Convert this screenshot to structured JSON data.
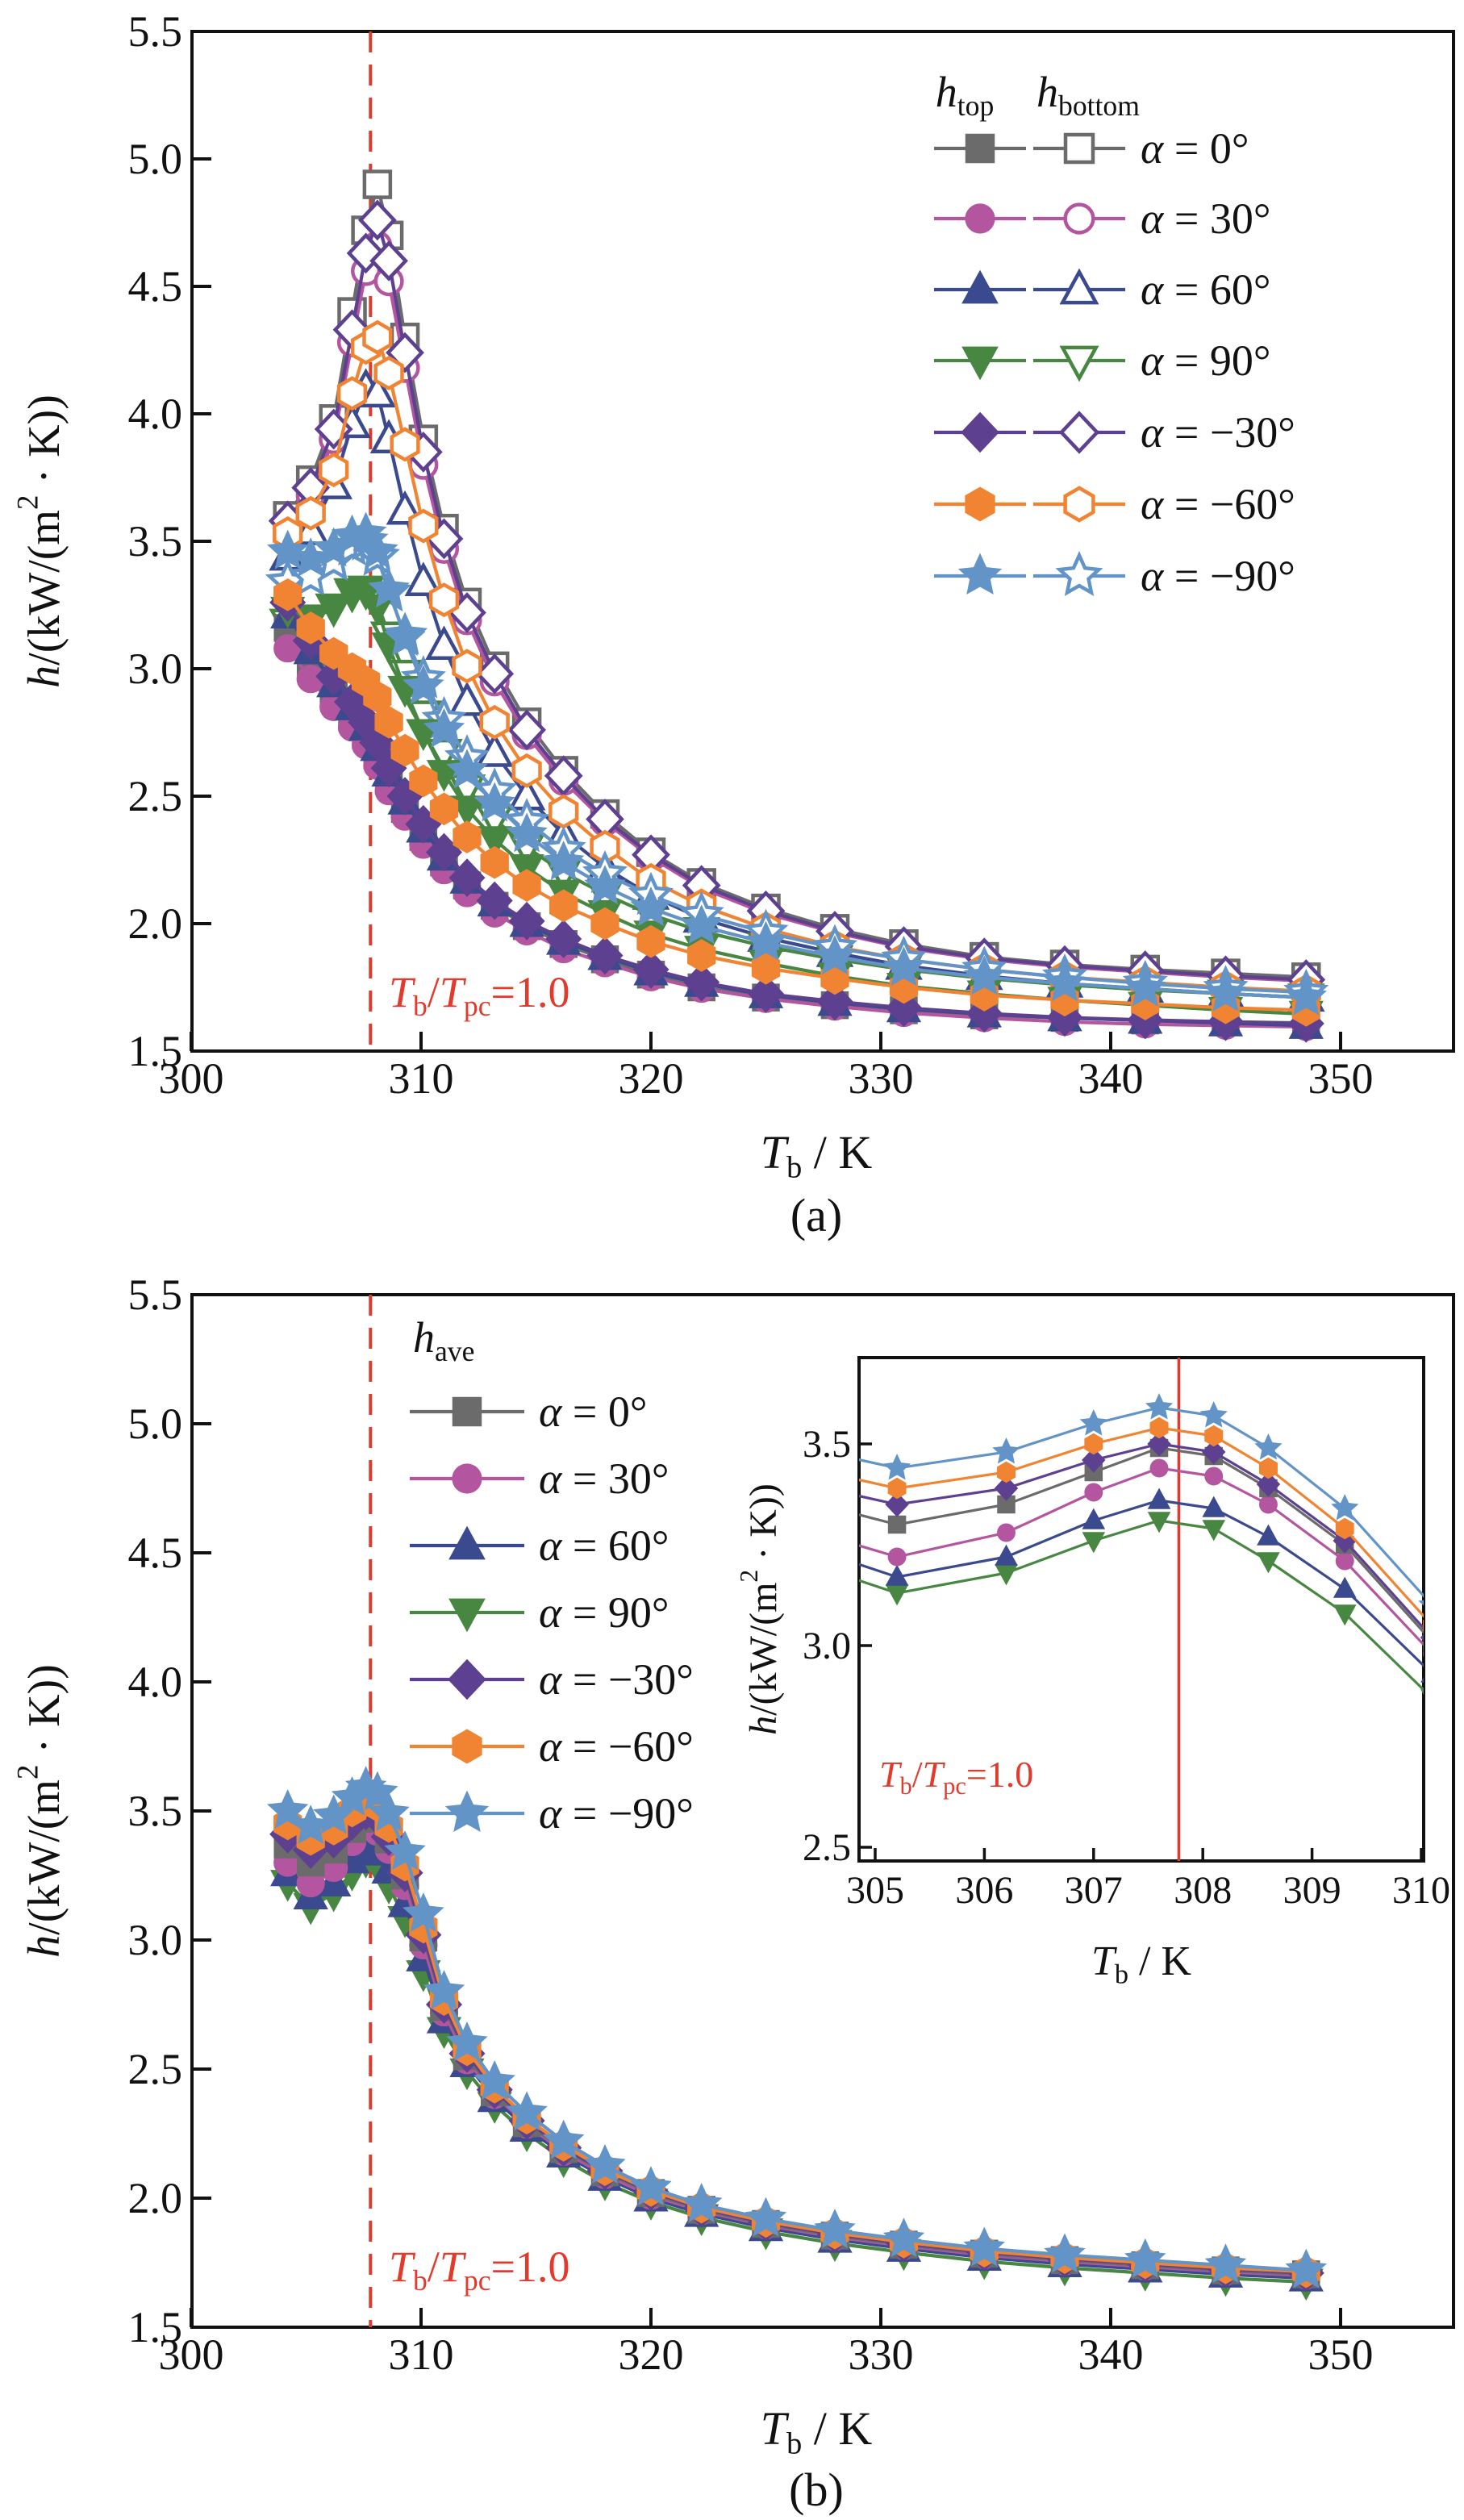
{
  "figure": {
    "background": "#ffffff",
    "text_color": "#111111",
    "accent_red": "#e23a2c",
    "caption_a": "(a)",
    "caption_b": "(b)"
  },
  "chart_data": [
    {
      "id": "panel_a",
      "type": "line",
      "caption": "(a)",
      "xlabel": "*T*~b~ / K",
      "ylabel": "*h*/(kW/(m^2^ · K))",
      "xlim": [
        300,
        354.9
      ],
      "ylim": [
        1.5,
        5.5
      ],
      "xticks": [
        300,
        310,
        320,
        330,
        340,
        350
      ],
      "yticks": [
        1.5,
        2.0,
        2.5,
        3.0,
        3.5,
        4.0,
        4.5,
        5.0,
        5.5
      ],
      "grid": false,
      "legend": {
        "position": "top-right",
        "columns": [
          "*h*~top~",
          "*h*~bottom~"
        ]
      },
      "annotation": {
        "text": "*T*~b~/*T*~pc~=1.0",
        "x": 307.8,
        "line_style": "dashed",
        "color": "#e23a2c"
      },
      "x": [
        304.2,
        305.2,
        306.2,
        307.0,
        307.6,
        308.1,
        308.6,
        309.3,
        310.1,
        311.0,
        312.0,
        313.2,
        314.6,
        316.2,
        318.0,
        320.0,
        322.2,
        325.0,
        328.0,
        331.0,
        334.5,
        338.0,
        341.5,
        345.0,
        348.5
      ],
      "series": [
        {
          "label": "*α* = 0°",
          "angle": "0°",
          "color": "#6b6b6b",
          "marker": "square",
          "top": [
            3.16,
            3.02,
            2.9,
            2.81,
            2.74,
            2.66,
            2.56,
            2.45,
            2.34,
            2.24,
            2.15,
            2.07,
            1.99,
            1.92,
            1.86,
            1.8,
            1.75,
            1.71,
            1.68,
            1.66,
            1.64,
            1.63,
            1.62,
            1.615,
            1.61
          ],
          "bottom": [
            3.6,
            3.74,
            3.98,
            4.4,
            4.72,
            4.9,
            4.7,
            4.3,
            3.9,
            3.55,
            3.26,
            3.01,
            2.79,
            2.6,
            2.43,
            2.28,
            2.16,
            2.06,
            1.98,
            1.92,
            1.87,
            1.84,
            1.82,
            1.805,
            1.79
          ]
        },
        {
          "label": "*α* = 30°",
          "angle": "30°",
          "color": "#b4569f",
          "marker": "circle",
          "top": [
            3.08,
            2.96,
            2.85,
            2.77,
            2.7,
            2.62,
            2.52,
            2.42,
            2.31,
            2.21,
            2.12,
            2.04,
            1.97,
            1.9,
            1.845,
            1.79,
            1.745,
            1.705,
            1.675,
            1.65,
            1.63,
            1.615,
            1.605,
            1.6,
            1.595
          ],
          "bottom": [
            3.55,
            3.68,
            3.9,
            4.28,
            4.56,
            4.66,
            4.52,
            4.18,
            3.8,
            3.47,
            3.19,
            2.95,
            2.74,
            2.56,
            2.4,
            2.26,
            2.14,
            2.04,
            1.965,
            1.905,
            1.86,
            1.83,
            1.81,
            1.79,
            1.775
          ]
        },
        {
          "label": "*α* = 60°",
          "angle": "60°",
          "color": "#3b4a8e",
          "marker": "triangle-up",
          "top": [
            3.21,
            3.07,
            2.94,
            2.85,
            2.77,
            2.69,
            2.59,
            2.48,
            2.37,
            2.26,
            2.17,
            2.08,
            2.0,
            1.93,
            1.87,
            1.81,
            1.765,
            1.72,
            1.69,
            1.665,
            1.645,
            1.63,
            1.62,
            1.61,
            1.6
          ],
          "bottom": [
            3.44,
            3.54,
            3.72,
            3.96,
            4.1,
            4.08,
            3.9,
            3.62,
            3.34,
            3.09,
            2.87,
            2.67,
            2.5,
            2.35,
            2.22,
            2.11,
            2.02,
            1.945,
            1.885,
            1.835,
            1.795,
            1.765,
            1.745,
            1.725,
            1.71
          ]
        },
        {
          "label": "*α* = 90°",
          "angle": "90°",
          "color": "#478741",
          "marker": "triangle-down",
          "top": [
            3.23,
            3.2,
            3.24,
            3.29,
            3.3,
            3.24,
            3.09,
            2.92,
            2.75,
            2.59,
            2.45,
            2.33,
            2.22,
            2.12,
            2.04,
            1.96,
            1.9,
            1.845,
            1.795,
            1.755,
            1.725,
            1.7,
            1.68,
            1.66,
            1.645
          ],
          "bottom": [
            3.18,
            3.19,
            3.24,
            3.3,
            3.31,
            3.26,
            3.13,
            2.98,
            2.82,
            2.67,
            2.53,
            2.41,
            2.3,
            2.2,
            2.115,
            2.035,
            1.97,
            1.91,
            1.86,
            1.82,
            1.785,
            1.76,
            1.74,
            1.725,
            1.71
          ]
        },
        {
          "label": "*α* = −30°",
          "angle": "−30°",
          "color": "#5e4090",
          "marker": "diamond",
          "top": [
            3.26,
            3.11,
            2.97,
            2.87,
            2.79,
            2.71,
            2.61,
            2.5,
            2.39,
            2.28,
            2.18,
            2.09,
            2.01,
            1.94,
            1.875,
            1.82,
            1.77,
            1.725,
            1.695,
            1.67,
            1.648,
            1.632,
            1.622,
            1.615,
            1.608
          ],
          "bottom": [
            3.58,
            3.71,
            3.94,
            4.33,
            4.63,
            4.76,
            4.6,
            4.24,
            3.85,
            3.51,
            3.22,
            2.98,
            2.76,
            2.58,
            2.41,
            2.27,
            2.15,
            2.05,
            1.97,
            1.91,
            1.865,
            1.835,
            1.815,
            1.795,
            1.78
          ]
        },
        {
          "label": "*α* = −60°",
          "angle": "−60°",
          "color": "#f08432",
          "marker": "hexagon",
          "top": [
            3.29,
            3.16,
            3.06,
            3.0,
            2.95,
            2.89,
            2.79,
            2.68,
            2.56,
            2.45,
            2.34,
            2.24,
            2.15,
            2.07,
            2.0,
            1.93,
            1.875,
            1.825,
            1.785,
            1.75,
            1.72,
            1.7,
            1.685,
            1.67,
            1.66
          ],
          "bottom": [
            3.53,
            3.61,
            3.78,
            4.08,
            4.26,
            4.3,
            4.16,
            3.88,
            3.56,
            3.27,
            3.01,
            2.79,
            2.6,
            2.44,
            2.3,
            2.17,
            2.07,
            1.98,
            1.91,
            1.86,
            1.82,
            1.79,
            1.77,
            1.75,
            1.735
          ]
        },
        {
          "label": "*α* = −90°",
          "angle": "−90°",
          "color": "#6394c8",
          "marker": "star",
          "top": [
            3.46,
            3.43,
            3.47,
            3.52,
            3.53,
            3.46,
            3.31,
            3.12,
            2.93,
            2.76,
            2.6,
            2.47,
            2.35,
            2.24,
            2.145,
            2.06,
            1.99,
            1.925,
            1.87,
            1.825,
            1.79,
            1.765,
            1.745,
            1.725,
            1.71
          ],
          "bottom": [
            3.34,
            3.36,
            3.42,
            3.48,
            3.5,
            3.44,
            3.3,
            3.13,
            2.96,
            2.8,
            2.65,
            2.52,
            2.4,
            2.29,
            2.195,
            2.11,
            2.035,
            1.965,
            1.905,
            1.86,
            1.82,
            1.79,
            1.765,
            1.745,
            1.73
          ]
        }
      ]
    },
    {
      "id": "panel_b",
      "type": "line",
      "caption": "(b)",
      "xlabel": "*T*~b~ / K",
      "ylabel": "*h*/(kW/(m^2^ · K))",
      "xlim": [
        300,
        354.9
      ],
      "ylim": [
        1.5,
        5.5
      ],
      "xticks": [
        300,
        310,
        320,
        330,
        340,
        350
      ],
      "yticks": [
        1.5,
        2.0,
        2.5,
        3.0,
        3.5,
        4.0,
        4.5,
        5.0,
        5.5
      ],
      "grid": false,
      "legend": {
        "position": "upper-left",
        "columns": [
          "*h*~ave~"
        ]
      },
      "annotation": {
        "text": "*T*~b~/*T*~pc~=1.0",
        "x": 307.8,
        "line_style": "dashed",
        "color": "#e23a2c"
      },
      "x": [
        304.2,
        305.2,
        306.2,
        307.0,
        307.6,
        308.1,
        308.6,
        309.3,
        310.1,
        311.0,
        312.0,
        313.2,
        314.6,
        316.2,
        318.0,
        320.0,
        322.2,
        325.0,
        328.0,
        331.0,
        334.5,
        338.0,
        341.5,
        345.0,
        348.5
      ],
      "series": [
        {
          "label": "*α* = 0°",
          "angle": "0°",
          "color": "#6b6b6b",
          "marker": "square",
          "values": [
            3.37,
            3.3,
            3.35,
            3.43,
            3.49,
            3.47,
            3.39,
            3.25,
            3.01,
            2.74,
            2.55,
            2.41,
            2.29,
            2.19,
            2.1,
            2.02,
            1.955,
            1.9,
            1.855,
            1.82,
            1.785,
            1.76,
            1.74,
            1.72,
            1.705
          ]
        },
        {
          "label": "*α* = 30°",
          "angle": "30°",
          "color": "#b4569f",
          "marker": "circle",
          "values": [
            3.3,
            3.22,
            3.28,
            3.38,
            3.44,
            3.42,
            3.35,
            3.21,
            2.98,
            2.72,
            2.535,
            2.4,
            2.285,
            2.18,
            2.09,
            2.01,
            1.95,
            1.895,
            1.85,
            1.815,
            1.78,
            1.755,
            1.735,
            1.715,
            1.7
          ]
        },
        {
          "label": "*α* = 60°",
          "angle": "60°",
          "color": "#3b4a8e",
          "marker": "triangle-up",
          "values": [
            3.26,
            3.17,
            3.22,
            3.31,
            3.36,
            3.34,
            3.27,
            3.14,
            2.93,
            2.69,
            2.52,
            2.385,
            2.27,
            2.17,
            2.08,
            2.0,
            1.94,
            1.885,
            1.84,
            1.805,
            1.77,
            1.745,
            1.725,
            1.705,
            1.69
          ]
        },
        {
          "label": "*α* = 90°",
          "angle": "90°",
          "color": "#478741",
          "marker": "triangle-down",
          "values": [
            3.22,
            3.13,
            3.18,
            3.26,
            3.31,
            3.29,
            3.21,
            3.08,
            2.87,
            2.65,
            2.49,
            2.36,
            2.25,
            2.15,
            2.06,
            1.985,
            1.925,
            1.87,
            1.825,
            1.79,
            1.755,
            1.73,
            1.71,
            1.69,
            1.675
          ]
        },
        {
          "label": "*α* = −30°",
          "angle": "−30°",
          "color": "#5e4090",
          "marker": "diamond",
          "values": [
            3.41,
            3.35,
            3.39,
            3.46,
            3.5,
            3.48,
            3.4,
            3.26,
            3.02,
            2.75,
            2.56,
            2.42,
            2.3,
            2.195,
            2.105,
            2.025,
            1.96,
            1.905,
            1.86,
            1.825,
            1.79,
            1.765,
            1.745,
            1.725,
            1.71
          ]
        },
        {
          "label": "*α* = −60°",
          "angle": "−60°",
          "color": "#f08432",
          "marker": "hexagon",
          "values": [
            3.45,
            3.39,
            3.43,
            3.5,
            3.54,
            3.52,
            3.44,
            3.29,
            3.05,
            2.77,
            2.575,
            2.43,
            2.31,
            2.205,
            2.11,
            2.03,
            1.965,
            1.91,
            1.865,
            1.83,
            1.795,
            1.77,
            1.75,
            1.73,
            1.715
          ]
        },
        {
          "label": "*α* = −90°",
          "angle": "−90°",
          "color": "#6394c8",
          "marker": "star",
          "values": [
            3.5,
            3.44,
            3.48,
            3.55,
            3.59,
            3.57,
            3.49,
            3.34,
            3.1,
            2.8,
            2.6,
            2.45,
            2.33,
            2.22,
            2.125,
            2.04,
            1.975,
            1.92,
            1.875,
            1.84,
            1.805,
            1.78,
            1.76,
            1.74,
            1.72
          ]
        }
      ]
    },
    {
      "id": "inset",
      "type": "line",
      "xlabel": "*T*~b~ / K",
      "ylabel": "*h*/(kW/(m^2^ · K))",
      "xlim": [
        304.85,
        310.1
      ],
      "ylim": [
        2.466,
        3.714
      ],
      "xticks": [
        305,
        306,
        307,
        308,
        309,
        310
      ],
      "yticks": [
        2.5,
        3.0,
        3.5
      ],
      "grid": false,
      "annotation": {
        "text": "*T*~b~/*T*~pc~=1.0",
        "x": 307.78,
        "line_style": "solid",
        "color": "#e23a2c"
      },
      "series_from": "panel_b"
    }
  ]
}
